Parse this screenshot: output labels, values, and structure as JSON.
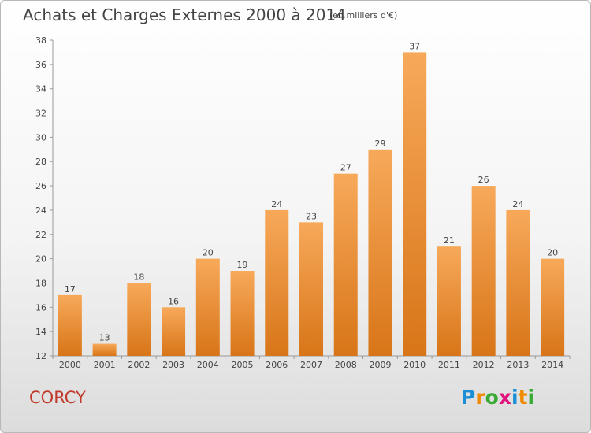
{
  "header": {
    "title": "Achats et Charges Externes 2000 à 2014",
    "subtitle": "(en milliers d'€)"
  },
  "footer": {
    "commune": "CORCY",
    "logo_text": "Proxiti"
  },
  "colors": {
    "bar_top": "#f7a95a",
    "bar_bottom": "#d87518",
    "commune": "#c0392b"
  },
  "chart_data": {
    "type": "bar",
    "title": "Achats et Charges Externes 2000 à 2014",
    "subtitle": "(en milliers d'€)",
    "categories": [
      "2000",
      "2001",
      "2002",
      "2003",
      "2004",
      "2005",
      "2006",
      "2007",
      "2008",
      "2009",
      "2010",
      "2011",
      "2012",
      "2013",
      "2014"
    ],
    "values": [
      17,
      13,
      18,
      16,
      20,
      19,
      24,
      23,
      27,
      29,
      37,
      21,
      26,
      24,
      20
    ],
    "ylim": [
      12,
      38
    ],
    "yticks": [
      12,
      14,
      16,
      18,
      20,
      22,
      24,
      26,
      28,
      30,
      32,
      34,
      36,
      38
    ],
    "grid": false,
    "data_labels": true
  }
}
